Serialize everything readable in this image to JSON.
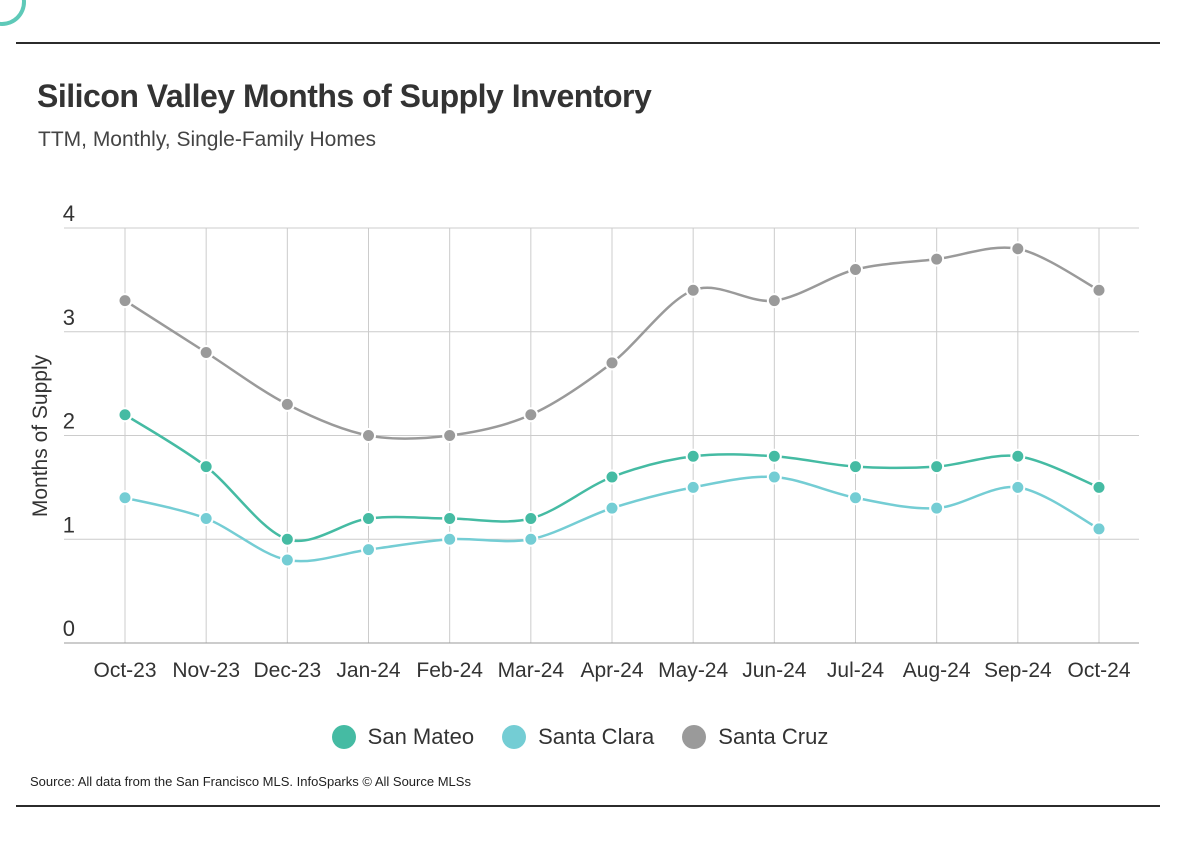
{
  "title": "Silicon Valley Months of Supply Inventory",
  "subtitle": "TTM, Monthly, Single-Family Homes",
  "source": "Source:  All data from the San Francisco MLS. InfoSparks © All Source MLSs",
  "chart_data": {
    "type": "line",
    "title": "Silicon Valley Months of Supply Inventory",
    "subtitle": "TTM, Monthly, Single-Family Homes",
    "xlabel": "",
    "ylabel": "Months of Supply",
    "ylim": [
      0,
      4
    ],
    "yticks": [
      "0",
      "1",
      "2",
      "3",
      "4"
    ],
    "grid": true,
    "legend_position": "bottom",
    "categories": [
      "Oct-23",
      "Nov-23",
      "Dec-23",
      "Jan-24",
      "Feb-24",
      "Mar-24",
      "Apr-24",
      "May-24",
      "Jun-24",
      "Jul-24",
      "Aug-24",
      "Sep-24",
      "Oct-24"
    ],
    "series": [
      {
        "name": "San Mateo",
        "color": "#45bba3",
        "values": [
          2.2,
          1.7,
          1.0,
          1.2,
          1.2,
          1.2,
          1.6,
          1.8,
          1.8,
          1.7,
          1.7,
          1.8,
          1.5
        ]
      },
      {
        "name": "Santa Clara",
        "color": "#74cdd4",
        "values": [
          1.4,
          1.2,
          0.8,
          0.9,
          1.0,
          1.0,
          1.3,
          1.5,
          1.6,
          1.4,
          1.3,
          1.5,
          1.1
        ]
      },
      {
        "name": "Santa Cruz",
        "color": "#9a9a9a",
        "values": [
          3.3,
          2.8,
          2.3,
          2.0,
          2.0,
          2.2,
          2.7,
          3.4,
          3.3,
          3.6,
          3.7,
          3.8,
          3.4
        ]
      }
    ]
  }
}
